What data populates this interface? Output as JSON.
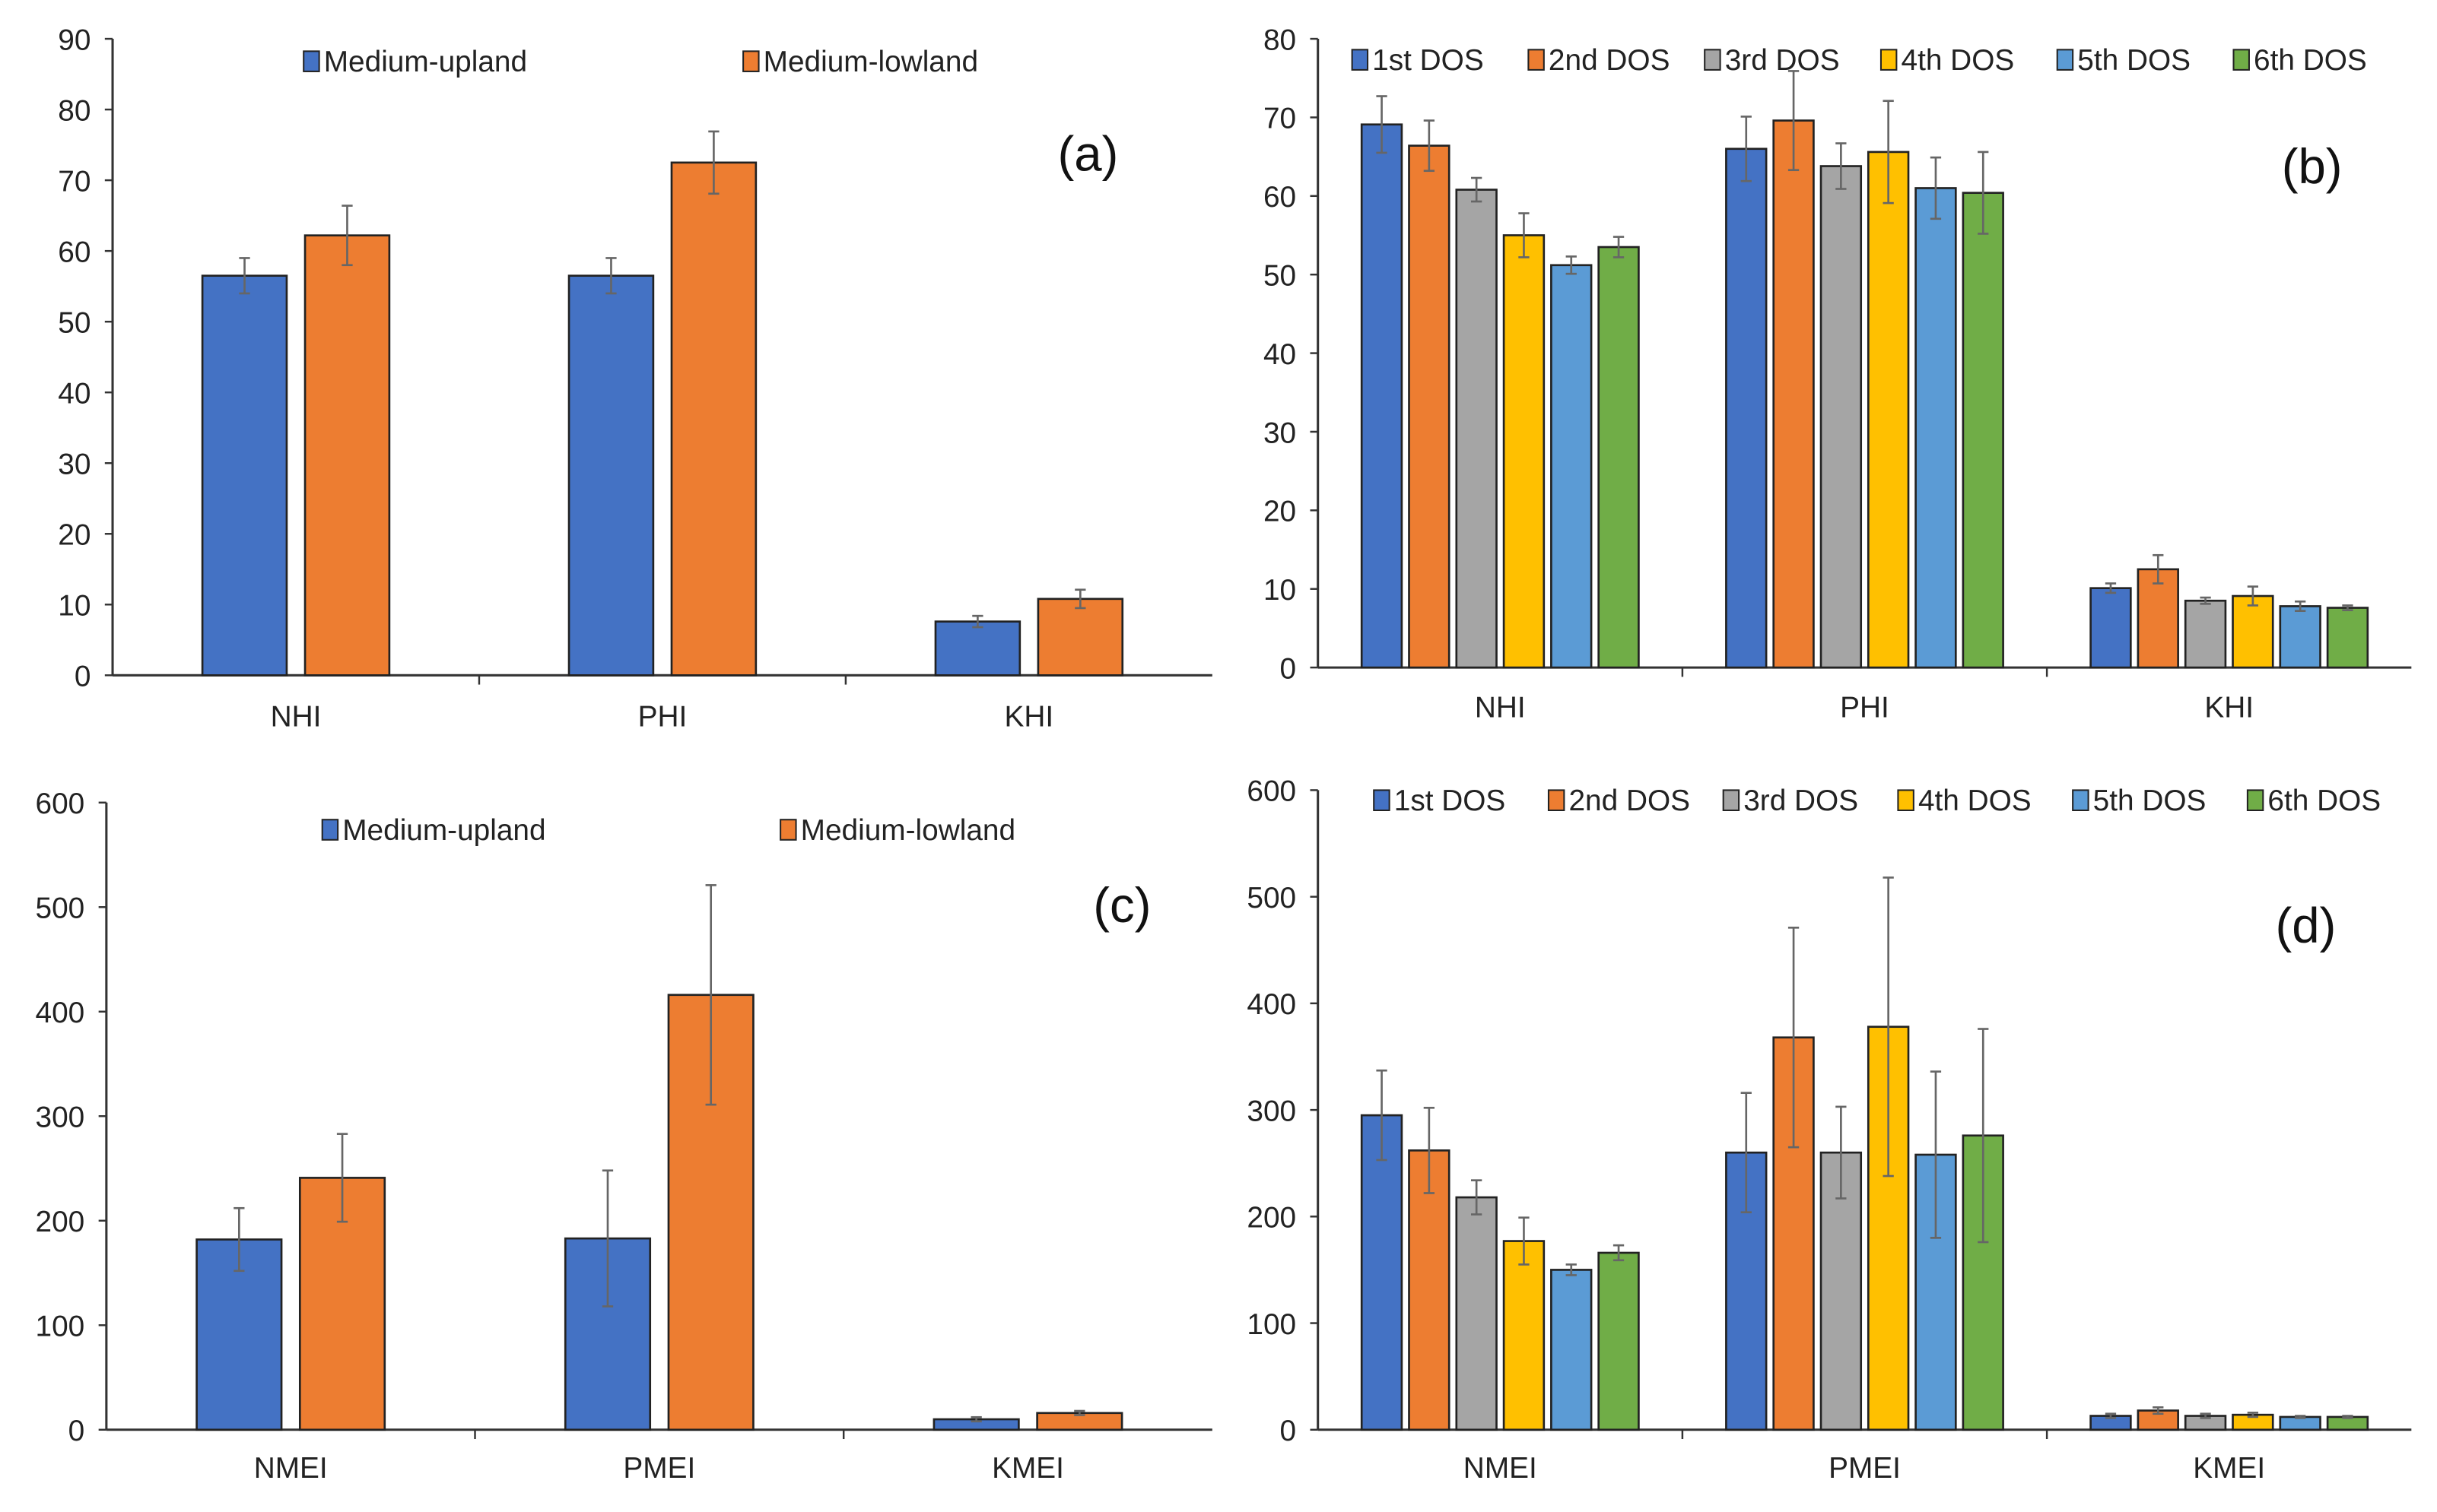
{
  "colors": {
    "Medium-upland": "#4472C4",
    "Medium-lowland": "#ED7D31",
    "1st DOS": "#4472C4",
    "2nd DOS": "#ED7D31",
    "3rd DOS": "#A5A5A5",
    "4th DOS": "#FFC000",
    "5th DOS": "#5B9BD5",
    "6th DOS": "#70AD47",
    "error": "#666666"
  },
  "chart_data": [
    {
      "type": "bar",
      "panel_label": "(a)",
      "categories": [
        "NHI",
        "PHI",
        "KHI"
      ],
      "ylim": [
        0,
        90
      ],
      "yticks": [
        0,
        10,
        20,
        30,
        40,
        50,
        60,
        70,
        80,
        90
      ],
      "legend": "top",
      "series": [
        {
          "name": "Medium-upland",
          "values": [
            56.5,
            56.5,
            7.6
          ],
          "errors": [
            2.5,
            2.5,
            0.8
          ]
        },
        {
          "name": "Medium-lowland",
          "values": [
            62.2,
            72.5,
            10.8
          ],
          "errors": [
            4.2,
            4.4,
            1.3
          ]
        }
      ]
    },
    {
      "type": "bar",
      "panel_label": "(b)",
      "categories": [
        "NHI",
        "PHI",
        "KHI"
      ],
      "ylim": [
        0,
        80
      ],
      "yticks": [
        0,
        10,
        20,
        30,
        40,
        50,
        60,
        70,
        80
      ],
      "legend": "top",
      "series": [
        {
          "name": "1st DOS",
          "values": [
            69.1,
            66.0,
            10.1
          ],
          "errors": [
            3.6,
            4.1,
            0.6
          ]
        },
        {
          "name": "2nd DOS",
          "values": [
            66.4,
            69.6,
            12.5
          ],
          "errors": [
            3.2,
            6.3,
            1.8
          ]
        },
        {
          "name": "3rd DOS",
          "values": [
            60.8,
            63.8,
            8.5
          ],
          "errors": [
            1.5,
            2.9,
            0.4
          ]
        },
        {
          "name": "4th DOS",
          "values": [
            55.0,
            65.6,
            9.1
          ],
          "errors": [
            2.8,
            6.5,
            1.2
          ]
        },
        {
          "name": "5th DOS",
          "values": [
            51.2,
            61.0,
            7.8
          ],
          "errors": [
            1.1,
            3.9,
            0.6
          ]
        },
        {
          "name": "6th DOS",
          "values": [
            53.5,
            60.4,
            7.6
          ],
          "errors": [
            1.3,
            5.2,
            0.3
          ]
        }
      ]
    },
    {
      "type": "bar",
      "panel_label": "(c)",
      "categories": [
        "NMEI",
        "PMEI",
        "KMEI"
      ],
      "ylim": [
        0,
        600
      ],
      "yticks": [
        0,
        100,
        200,
        300,
        400,
        500,
        600
      ],
      "legend": "top",
      "series": [
        {
          "name": "Medium-upland",
          "values": [
            182,
            183,
            10
          ],
          "errors": [
            30,
            65,
            2
          ]
        },
        {
          "name": "Medium-lowland",
          "values": [
            241,
            416,
            16
          ],
          "errors": [
            42,
            105,
            2
          ]
        }
      ]
    },
    {
      "type": "bar",
      "panel_label": "(d)",
      "categories": [
        "NMEI",
        "PMEI",
        "KMEI"
      ],
      "ylim": [
        0,
        600
      ],
      "yticks": [
        0,
        100,
        200,
        300,
        400,
        500,
        600
      ],
      "legend": "top",
      "series": [
        {
          "name": "1st DOS",
          "values": [
            295,
            260,
            13
          ],
          "errors": [
            42,
            56,
            2
          ]
        },
        {
          "name": "2nd DOS",
          "values": [
            262,
            368,
            18
          ],
          "errors": [
            40,
            103,
            3
          ]
        },
        {
          "name": "3rd DOS",
          "values": [
            218,
            260,
            13
          ],
          "errors": [
            16,
            43,
            2
          ]
        },
        {
          "name": "4th DOS",
          "values": [
            177,
            378,
            14
          ],
          "errors": [
            22,
            140,
            2
          ]
        },
        {
          "name": "5th DOS",
          "values": [
            150,
            258,
            12
          ],
          "errors": [
            5,
            78,
            1
          ]
        },
        {
          "name": "6th DOS",
          "values": [
            166,
            276,
            12
          ],
          "errors": [
            7,
            100,
            1
          ]
        }
      ]
    }
  ]
}
